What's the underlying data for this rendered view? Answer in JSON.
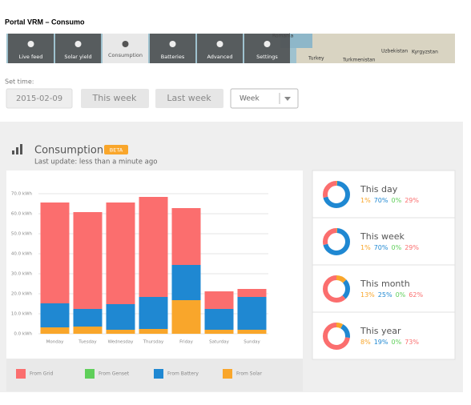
{
  "page_title": "Portal VRM – Consumo",
  "tabs": [
    "Live feed",
    "Solar yield",
    "Consumption",
    "Batteries",
    "Advanced",
    "Settings"
  ],
  "map_labels": [
    "Romania",
    "Turkey",
    "Turkmenistan",
    "Uzbekistan",
    "Kyrgyzstan"
  ],
  "time": {
    "label": "Set time:",
    "date": "2015-02-09",
    "this_week": "This week",
    "last_week": "Last week",
    "period": "Week"
  },
  "section": {
    "title": "Consumption",
    "badge": "BETA",
    "updated": "Last update: less than a minute ago"
  },
  "chart": {
    "type": "stacked-bar",
    "categories": [
      "Monday",
      "Tuesday",
      "Wednesday",
      "Thursday",
      "Friday",
      "Saturday",
      "Sunday"
    ],
    "series": [
      {
        "name": "From Solar",
        "color": "#f9a62b",
        "values": [
          3.2,
          3.6,
          2,
          2.4,
          16.8,
          2,
          2
        ]
      },
      {
        "name": "From Battery",
        "color": "#1f88d2",
        "values": [
          12,
          8.8,
          12.8,
          16,
          17.6,
          10.4,
          16.4
        ]
      },
      {
        "name": "From Genset",
        "color": "#5fcf5a",
        "values": [
          0,
          0,
          0,
          0,
          0,
          0,
          0
        ]
      },
      {
        "name": "From Grid",
        "color": "#fb6e6e",
        "values": [
          50.4,
          48.4,
          50.8,
          50,
          28.4,
          8.8,
          4
        ]
      }
    ],
    "legend_order": [
      3,
      2,
      1,
      0
    ],
    "ylim": [
      0,
      70
    ],
    "yticks": [
      {
        "value": 0,
        "label": "0.0 kWh"
      },
      {
        "value": 10,
        "label": "10.0 kWh"
      },
      {
        "value": 20,
        "label": "20.0 kWh"
      },
      {
        "value": 30,
        "label": "30.0 kWh"
      },
      {
        "value": 40,
        "label": "40.0 kWh"
      },
      {
        "value": 50,
        "label": "50.0 kWh"
      },
      {
        "value": 60,
        "label": "60.0 kWh"
      },
      {
        "value": 70,
        "label": "70.0 kWh"
      }
    ],
    "grid": true
  },
  "summaries": [
    {
      "title": "This day",
      "values": [
        1,
        70,
        0,
        29
      ],
      "value_labels": [
        "1%",
        "70%",
        "0%",
        "29%"
      ]
    },
    {
      "title": "This week",
      "values": [
        1,
        70,
        0,
        29
      ],
      "value_labels": [
        "1%",
        "70%",
        "0%",
        "29%"
      ]
    },
    {
      "title": "This month",
      "values": [
        13,
        25,
        0,
        62
      ],
      "value_labels": [
        "13%",
        "25%",
        "0%",
        "62%"
      ]
    },
    {
      "title": "This year",
      "values": [
        8,
        19,
        0,
        73
      ],
      "value_labels": [
        "8%",
        "19%",
        "0%",
        "73%"
      ]
    }
  ]
}
